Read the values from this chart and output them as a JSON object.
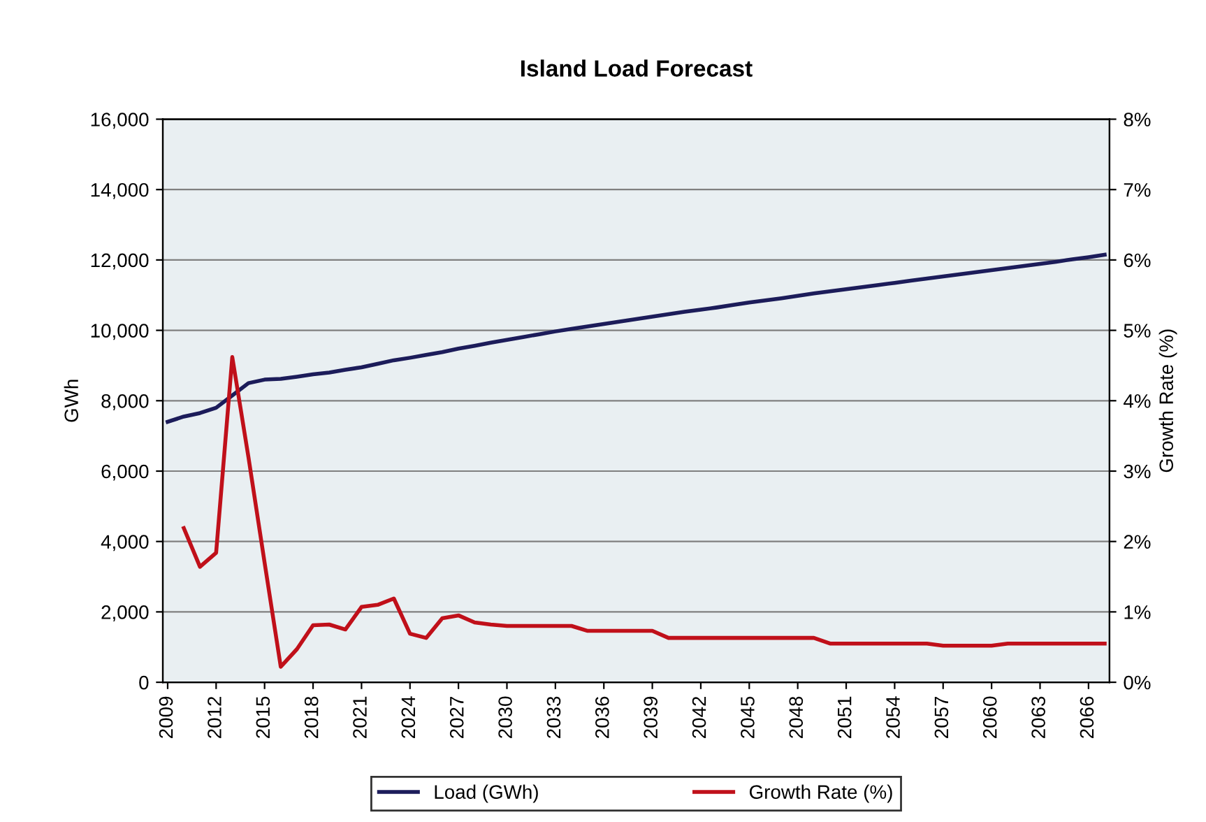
{
  "chart_data": {
    "type": "line",
    "title": "Island Load Forecast",
    "ylabel": "GWh",
    "y2label": "Growth Rate (%)",
    "x": [
      2009,
      2010,
      2011,
      2012,
      2013,
      2014,
      2015,
      2016,
      2017,
      2018,
      2019,
      2020,
      2021,
      2022,
      2023,
      2024,
      2025,
      2026,
      2027,
      2028,
      2029,
      2030,
      2031,
      2032,
      2033,
      2034,
      2035,
      2036,
      2037,
      2038,
      2039,
      2040,
      2041,
      2042,
      2043,
      2044,
      2045,
      2046,
      2047,
      2048,
      2049,
      2050,
      2051,
      2052,
      2053,
      2054,
      2055,
      2056,
      2057,
      2058,
      2059,
      2060,
      2061,
      2062,
      2063,
      2064,
      2065,
      2066,
      2067
    ],
    "series": [
      {
        "name": "Load (GWh)",
        "color": "#1c1c5a",
        "values": [
          7400,
          7550,
          7650,
          7800,
          8150,
          8500,
          8600,
          8620,
          8680,
          8750,
          8800,
          8880,
          8950,
          9050,
          9150,
          9220,
          9300,
          9380,
          9480,
          9560,
          9650,
          9730,
          9810,
          9890,
          9970,
          10040,
          10110,
          10180,
          10250,
          10320,
          10390,
          10460,
          10530,
          10590,
          10650,
          10720,
          10790,
          10850,
          10910,
          10980,
          11050,
          11110,
          11170,
          11230,
          11290,
          11350,
          11410,
          11470,
          11530,
          11590,
          11650,
          11710,
          11770,
          11830,
          11890,
          11950,
          12020,
          12080,
          12150
        ]
      },
      {
        "name": "Growth Rate (%)",
        "color": "#c0101a",
        "axis": "y2",
        "values": [
          null,
          2.19,
          1.64,
          1.84,
          4.62,
          3.2,
          1.7,
          0.22,
          0.47,
          0.81,
          0.82,
          0.75,
          1.07,
          1.1,
          1.19,
          0.69,
          0.63,
          0.91,
          0.95,
          0.85,
          0.82,
          0.8,
          0.8,
          0.8,
          0.8,
          0.8,
          0.73,
          0.73,
          0.73,
          0.73,
          0.73,
          0.63,
          0.63,
          0.63,
          0.63,
          0.63,
          0.63,
          0.63,
          0.63,
          0.63,
          0.63,
          0.55,
          0.55,
          0.55,
          0.55,
          0.55,
          0.55,
          0.55,
          0.52,
          0.52,
          0.52,
          0.52,
          0.55,
          0.55,
          0.55,
          0.55,
          0.55,
          0.55,
          0.55
        ]
      }
    ],
    "xlim": [
      2008.7,
      2067.3
    ],
    "xticks": [
      2009,
      2012,
      2015,
      2018,
      2021,
      2024,
      2027,
      2030,
      2033,
      2036,
      2039,
      2042,
      2045,
      2048,
      2051,
      2054,
      2057,
      2060,
      2063,
      2066
    ],
    "ylim": [
      0,
      16000
    ],
    "yticks": [
      {
        "value": 0,
        "label": "0"
      },
      {
        "value": 2000,
        "label": "2,000"
      },
      {
        "value": 4000,
        "label": "4,000"
      },
      {
        "value": 6000,
        "label": "6,000"
      },
      {
        "value": 8000,
        "label": "8,000"
      },
      {
        "value": 10000,
        "label": "10,000"
      },
      {
        "value": 12000,
        "label": "12,000"
      },
      {
        "value": 14000,
        "label": "14,000"
      },
      {
        "value": 16000,
        "label": "16,000"
      }
    ],
    "y2lim": [
      0,
      8
    ],
    "y2ticks": [
      {
        "value": 0,
        "label": "0%"
      },
      {
        "value": 1,
        "label": "1%"
      },
      {
        "value": 2,
        "label": "2%"
      },
      {
        "value": 3,
        "label": "3%"
      },
      {
        "value": 4,
        "label": "4%"
      },
      {
        "value": 5,
        "label": "5%"
      },
      {
        "value": 6,
        "label": "6%"
      },
      {
        "value": 7,
        "label": "7%"
      },
      {
        "value": 8,
        "label": "8%"
      }
    ],
    "grid": "y",
    "legend": "bottom",
    "marker": "none",
    "line_style": "solid"
  }
}
